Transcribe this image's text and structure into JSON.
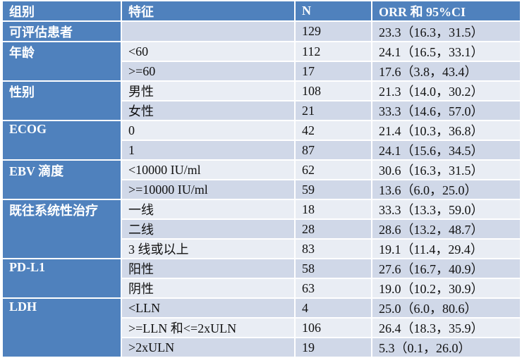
{
  "header": {
    "group": "组别",
    "feature": "特征",
    "n": "N",
    "orr": "ORR 和 95%CI"
  },
  "groups": [
    {
      "label": "可评估患者",
      "rows": [
        {
          "feature": "",
          "n": "129",
          "orr": "23.3（16.3，31.5）"
        }
      ]
    },
    {
      "label": "年龄",
      "rows": [
        {
          "feature": "<60",
          "n": "112",
          "orr": "24.1（16.5，33.1）"
        },
        {
          "feature": ">=60",
          "n": "17",
          "orr": "17.6（3.8，43.4）"
        }
      ]
    },
    {
      "label": "性别",
      "rows": [
        {
          "feature": "男性",
          "n": "108",
          "orr": "21.3（14.0，30.2）"
        },
        {
          "feature": "女性",
          "n": "21",
          "orr": "33.3（14.6，57.0）"
        }
      ]
    },
    {
      "label": "ECOG",
      "rows": [
        {
          "feature": "0",
          "n": "42",
          "orr": "21.4（10.3，36.8）"
        },
        {
          "feature": "1",
          "n": "87",
          "orr": "24.1（15.6，34.5）"
        }
      ]
    },
    {
      "label": "EBV 滴度",
      "rows": [
        {
          "feature": "<10000 IU/ml",
          "n": "62",
          "orr": "30.6（16.3，31.5）"
        },
        {
          "feature": ">=10000 IU/ml",
          "n": "59",
          "orr": "13.6（6.0，25.0）"
        }
      ]
    },
    {
      "label": "既往系统性治疗",
      "rows": [
        {
          "feature": "一线",
          "n": "18",
          "orr": "33.3（13.3，59.0）"
        },
        {
          "feature": "二线",
          "n": "28",
          "orr": "28.6（13.2，48.7）"
        },
        {
          "feature": "3 线或以上",
          "n": "83",
          "orr": "19.1（11.4，29.4）"
        }
      ]
    },
    {
      "label": "PD-L1",
      "rows": [
        {
          "feature": "阳性",
          "n": "58",
          "orr": "27.6（16.7，40.9）"
        },
        {
          "feature": "阴性",
          "n": "63",
          "orr": "19.0（10.2，30.9）"
        }
      ]
    },
    {
      "label": "LDH",
      "rows": [
        {
          "feature": "<LLN",
          "n": "4",
          "orr": "25.0（6.0，80.6）"
        },
        {
          "feature": ">=LLN 和<=2xULN",
          "n": "106",
          "orr": "26.4（18.3，35.9）"
        },
        {
          "feature": ">2xULN",
          "n": "19",
          "orr": "5.3（0.1，26.0）"
        }
      ]
    }
  ],
  "colors": {
    "header_bg": "#4f81bd",
    "row_dark": "#d0d8e8",
    "row_light": "#e9edf4"
  }
}
